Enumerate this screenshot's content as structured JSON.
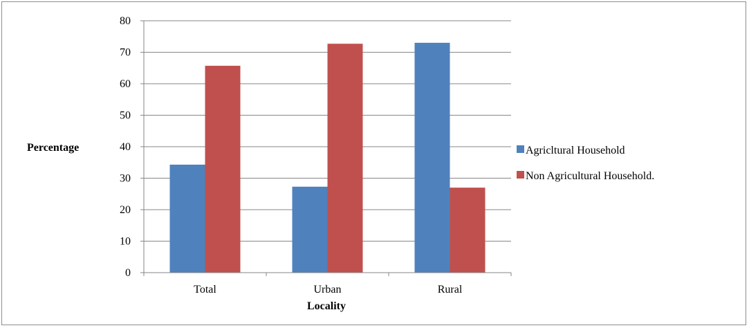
{
  "chart_data": {
    "type": "bar",
    "title": "",
    "xlabel": "Locality",
    "ylabel": "Percentage",
    "categories": [
      "Total",
      "Urban",
      "Rural"
    ],
    "series": [
      {
        "name": "Agricltural Household",
        "values": [
          34.3,
          27.3,
          73.0
        ],
        "color": "#4f81bd"
      },
      {
        "name": "Non Agricultural Household.",
        "values": [
          65.7,
          72.7,
          27.0
        ],
        "color": "#c0504d"
      }
    ],
    "ylim": [
      0,
      80
    ],
    "yticks": [
      0,
      10,
      20,
      30,
      40,
      50,
      60,
      70,
      80
    ],
    "grid": true,
    "legend_position": "right"
  }
}
